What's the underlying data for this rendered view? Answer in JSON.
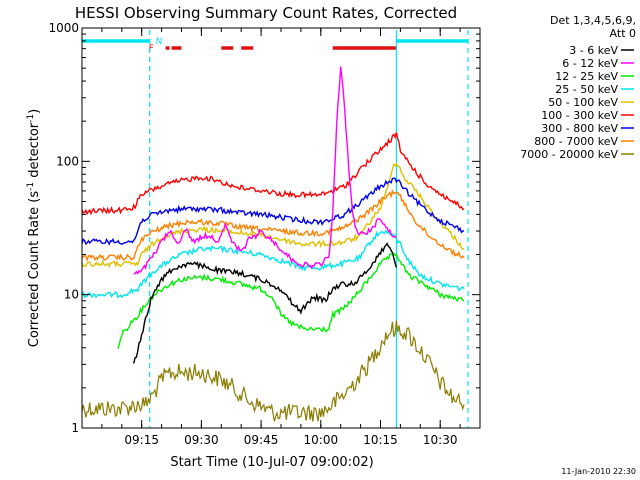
{
  "chart_data": {
    "type": "line",
    "title": "HESSI Observing Summary Count Rates, Corrected",
    "xlabel": "Start Time (10-Jul-07 09:00:02)",
    "ylabel_parts": [
      "Corrected Count Rate (s",
      "-1",
      " detector",
      "-1",
      ")"
    ],
    "y_scale": "log",
    "ylim": [
      1,
      1000
    ],
    "xlim": [
      "09:00",
      "10:40"
    ],
    "x_ticks": [
      "09:15",
      "09:30",
      "09:45",
      "10:00",
      "10:15",
      "10:30"
    ],
    "y_ticks": [
      "1",
      "10",
      "100",
      "1000"
    ],
    "grid": false,
    "legend_position": "outside-right",
    "legend_header": [
      "Det 1,3,4,5,6,9,",
      "Att 0"
    ],
    "footer_date": "11-Jan-2010 22:30",
    "flags": {
      "N": {
        "label": "N",
        "color": "#00e5ee",
        "segments": [
          [
            "09:00",
            "09:17"
          ],
          [
            "10:19",
            "10:37"
          ]
        ]
      },
      "F": {
        "label": "F",
        "color": "#e01010",
        "segments": [
          [
            "09:21",
            "09:22"
          ],
          [
            "09:22.5",
            "09:25"
          ],
          [
            "09:35",
            "09:38"
          ],
          [
            "09:40",
            "09:43"
          ],
          [
            "10:03",
            "10:19"
          ]
        ]
      }
    },
    "vlines": [
      "09:17",
      "10:19",
      "10:37"
    ],
    "series": [
      {
        "name": "3 - 6 keV",
        "color": "#000000",
        "points": [
          [
            "09:13",
            3
          ],
          [
            "09:14",
            3.8
          ],
          [
            "09:15",
            5
          ],
          [
            "09:16",
            6.5
          ],
          [
            "09:17",
            8.5
          ],
          [
            "09:18",
            10.5
          ],
          [
            "09:20",
            13
          ],
          [
            "09:22",
            15
          ],
          [
            "09:25",
            16.5
          ],
          [
            "09:27",
            17
          ],
          [
            "09:30",
            16.5
          ],
          [
            "09:35",
            15
          ],
          [
            "09:40",
            14.5
          ],
          [
            "09:45",
            13
          ],
          [
            "09:50",
            11
          ],
          [
            "09:53",
            8.5
          ],
          [
            "09:55",
            7.5
          ],
          [
            "09:57",
            9
          ],
          [
            "09:59",
            9.5
          ],
          [
            "10:01",
            9
          ],
          [
            "10:03",
            11
          ],
          [
            "10:05",
            12
          ],
          [
            "10:07",
            12
          ],
          [
            "10:09",
            12.5
          ],
          [
            "10:11",
            14.5
          ],
          [
            "10:13",
            17
          ],
          [
            "10:15",
            21
          ],
          [
            "10:17",
            24
          ],
          [
            "10:18",
            20
          ],
          [
            "10:19",
            16
          ]
        ]
      },
      {
        "name": "6 - 12 keV",
        "color": "#ff00ff",
        "points": [
          [
            "09:13",
            14
          ],
          [
            "09:15",
            15
          ],
          [
            "09:17",
            18
          ],
          [
            "09:19",
            22
          ],
          [
            "09:20",
            25
          ],
          [
            "09:22",
            30
          ],
          [
            "09:24",
            24
          ],
          [
            "09:26",
            31
          ],
          [
            "09:28",
            25
          ],
          [
            "09:30",
            27
          ],
          [
            "09:32",
            28
          ],
          [
            "09:34",
            25
          ],
          [
            "09:36",
            33
          ],
          [
            "09:38",
            24
          ],
          [
            "09:40",
            21
          ],
          [
            "09:42",
            26
          ],
          [
            "09:44",
            28
          ],
          [
            "09:45",
            30
          ],
          [
            "09:48",
            25
          ],
          [
            "09:50",
            22
          ],
          [
            "09:53",
            18
          ],
          [
            "09:55",
            17
          ],
          [
            "09:57",
            16.5
          ],
          [
            "10:00",
            17
          ],
          [
            "10:02",
            19
          ],
          [
            "10:03",
            40
          ],
          [
            "10:04",
            200
          ],
          [
            "10:05",
            500
          ],
          [
            "10:06",
            250
          ],
          [
            "10:07",
            90
          ],
          [
            "10:08",
            40
          ],
          [
            "10:09",
            30
          ],
          [
            "10:11",
            28
          ],
          [
            "10:13",
            32
          ],
          [
            "10:15",
            38
          ],
          [
            "10:17",
            30
          ],
          [
            "10:19",
            27
          ]
        ]
      },
      {
        "name": "12 - 25 keV",
        "color": "#00ee00",
        "points": [
          [
            "09:09",
            4
          ],
          [
            "09:10",
            5
          ],
          [
            "09:12",
            6
          ],
          [
            "09:14",
            7
          ],
          [
            "09:16",
            8.5
          ],
          [
            "09:18",
            10
          ],
          [
            "09:20",
            11
          ],
          [
            "09:22",
            12
          ],
          [
            "09:25",
            13
          ],
          [
            "09:30",
            13.5
          ],
          [
            "09:35",
            13
          ],
          [
            "09:40",
            12
          ],
          [
            "09:45",
            11
          ],
          [
            "09:48",
            9.5
          ],
          [
            "09:50",
            7
          ],
          [
            "09:53",
            6
          ],
          [
            "09:56",
            5.5
          ],
          [
            "10:00",
            5.5
          ],
          [
            "10:02",
            5.5
          ],
          [
            "10:03",
            7
          ],
          [
            "10:06",
            8
          ],
          [
            "10:09",
            10
          ],
          [
            "10:12",
            13
          ],
          [
            "10:15",
            17
          ],
          [
            "10:17",
            19
          ],
          [
            "10:19",
            20
          ],
          [
            "10:22",
            14
          ],
          [
            "10:26",
            12
          ],
          [
            "10:30",
            10
          ],
          [
            "10:33",
            9.5
          ],
          [
            "10:36",
            9
          ]
        ]
      },
      {
        "name": "25 - 50 keV",
        "color": "#00e5ee",
        "points": [
          [
            "09:00",
            10
          ],
          [
            "09:10",
            10
          ],
          [
            "09:14",
            11
          ],
          [
            "09:16",
            13
          ],
          [
            "09:18",
            15
          ],
          [
            "09:22",
            18
          ],
          [
            "09:25",
            20
          ],
          [
            "09:30",
            22
          ],
          [
            "09:35",
            22
          ],
          [
            "09:40",
            21
          ],
          [
            "09:45",
            20
          ],
          [
            "09:50",
            18
          ],
          [
            "09:55",
            16
          ],
          [
            "10:00",
            16
          ],
          [
            "10:05",
            17
          ],
          [
            "10:08",
            18
          ],
          [
            "10:10",
            19
          ],
          [
            "10:12",
            24
          ],
          [
            "10:14",
            28
          ],
          [
            "10:16",
            30
          ],
          [
            "10:18",
            28
          ],
          [
            "10:20",
            24
          ],
          [
            "10:22",
            18
          ],
          [
            "10:25",
            14
          ],
          [
            "10:30",
            12
          ],
          [
            "10:36",
            11
          ]
        ]
      },
      {
        "name": "50 - 100 keV",
        "color": "#e0c000",
        "points": [
          [
            "09:00",
            17
          ],
          [
            "09:14",
            17
          ],
          [
            "09:15",
            20
          ],
          [
            "09:17",
            23
          ],
          [
            "09:20",
            27
          ],
          [
            "09:25",
            30
          ],
          [
            "09:30",
            31
          ],
          [
            "09:35",
            30
          ],
          [
            "09:40",
            29
          ],
          [
            "09:45",
            28
          ],
          [
            "09:50",
            26
          ],
          [
            "09:55",
            24
          ],
          [
            "10:00",
            24
          ],
          [
            "10:05",
            24.5
          ],
          [
            "10:08",
            26
          ],
          [
            "10:10",
            28
          ],
          [
            "10:12",
            34
          ],
          [
            "10:15",
            45
          ],
          [
            "10:17",
            65
          ],
          [
            "10:18",
            90
          ],
          [
            "10:19",
            100
          ],
          [
            "10:21",
            75
          ],
          [
            "10:24",
            60
          ],
          [
            "10:27",
            45
          ],
          [
            "10:30",
            35
          ],
          [
            "10:33",
            28
          ],
          [
            "10:36",
            22
          ]
        ]
      },
      {
        "name": "100 - 300 keV",
        "color": "#ff0000",
        "points": [
          [
            "09:00",
            42
          ],
          [
            "09:10",
            43
          ],
          [
            "09:13",
            45
          ],
          [
            "09:15",
            56
          ],
          [
            "09:18",
            62
          ],
          [
            "09:22",
            68
          ],
          [
            "09:26",
            73
          ],
          [
            "09:30",
            76
          ],
          [
            "09:34",
            72
          ],
          [
            "09:38",
            65
          ],
          [
            "09:42",
            62
          ],
          [
            "09:46",
            60
          ],
          [
            "09:50",
            57
          ],
          [
            "09:55",
            56
          ],
          [
            "10:00",
            56
          ],
          [
            "10:03",
            60
          ],
          [
            "10:06",
            65
          ],
          [
            "10:08",
            75
          ],
          [
            "10:10",
            88
          ],
          [
            "10:12",
            100
          ],
          [
            "10:14",
            115
          ],
          [
            "10:16",
            130
          ],
          [
            "10:18",
            150
          ],
          [
            "10:19",
            160
          ],
          [
            "10:20",
            120
          ],
          [
            "10:23",
            90
          ],
          [
            "10:26",
            70
          ],
          [
            "10:30",
            57
          ],
          [
            "10:33",
            50
          ],
          [
            "10:36",
            44
          ]
        ]
      },
      {
        "name": "300 - 800 keV",
        "color": "#0000ee",
        "points": [
          [
            "09:00",
            25
          ],
          [
            "09:13",
            25
          ],
          [
            "09:15",
            36
          ],
          [
            "09:18",
            40
          ],
          [
            "09:22",
            43
          ],
          [
            "09:26",
            44
          ],
          [
            "09:30",
            44
          ],
          [
            "09:35",
            43
          ],
          [
            "09:40",
            41
          ],
          [
            "09:45",
            40
          ],
          [
            "09:50",
            38
          ],
          [
            "09:55",
            36
          ],
          [
            "10:00",
            35
          ],
          [
            "10:03",
            37
          ],
          [
            "10:06",
            40
          ],
          [
            "10:09",
            47
          ],
          [
            "10:12",
            55
          ],
          [
            "10:14",
            62
          ],
          [
            "10:16",
            68
          ],
          [
            "10:18",
            72
          ],
          [
            "10:19",
            73
          ],
          [
            "10:21",
            62
          ],
          [
            "10:24",
            50
          ],
          [
            "10:27",
            42
          ],
          [
            "10:30",
            36
          ],
          [
            "10:33",
            33
          ],
          [
            "10:36",
            30
          ]
        ]
      },
      {
        "name": "800 - 7000 keV",
        "color": "#ff8000",
        "points": [
          [
            "09:00",
            19
          ],
          [
            "09:13",
            19
          ],
          [
            "09:15",
            26
          ],
          [
            "09:18",
            30
          ],
          [
            "09:22",
            33
          ],
          [
            "09:26",
            35
          ],
          [
            "09:30",
            35
          ],
          [
            "09:35",
            34
          ],
          [
            "09:40",
            32
          ],
          [
            "09:45",
            31
          ],
          [
            "09:50",
            30
          ],
          [
            "09:55",
            29
          ],
          [
            "10:00",
            29
          ],
          [
            "10:03",
            30
          ],
          [
            "10:06",
            32
          ],
          [
            "10:09",
            36
          ],
          [
            "10:12",
            42
          ],
          [
            "10:15",
            50
          ],
          [
            "10:17",
            56
          ],
          [
            "10:19",
            60
          ],
          [
            "10:21",
            48
          ],
          [
            "10:24",
            35
          ],
          [
            "10:27",
            28
          ],
          [
            "10:30",
            24
          ],
          [
            "10:33",
            21
          ],
          [
            "10:36",
            19
          ]
        ]
      },
      {
        "name": "7000 - 20000 keV",
        "color": "#8b7d00",
        "points": [
          [
            "09:00",
            1.4
          ],
          [
            "09:10",
            1.4
          ],
          [
            "09:14",
            1.5
          ],
          [
            "09:16",
            1.5
          ],
          [
            "09:18",
            1.8
          ],
          [
            "09:20",
            2.3
          ],
          [
            "09:22",
            2.6
          ],
          [
            "09:25",
            2.6
          ],
          [
            "09:30",
            2.6
          ],
          [
            "09:35",
            2.3
          ],
          [
            "09:38",
            2.0
          ],
          [
            "09:42",
            1.6
          ],
          [
            "09:48",
            1.3
          ],
          [
            "09:55",
            1.3
          ],
          [
            "10:00",
            1.3
          ],
          [
            "10:03",
            1.5
          ],
          [
            "10:06",
            1.8
          ],
          [
            "10:09",
            2.3
          ],
          [
            "10:12",
            3
          ],
          [
            "10:14",
            3.8
          ],
          [
            "10:16",
            4.8
          ],
          [
            "10:18",
            5.5
          ],
          [
            "10:20",
            5.5
          ],
          [
            "10:22",
            5
          ],
          [
            "10:24",
            4.2
          ],
          [
            "10:26",
            3.5
          ],
          [
            "10:28",
            2.8
          ],
          [
            "10:30",
            2.2
          ],
          [
            "10:33",
            1.7
          ],
          [
            "10:36",
            1.5
          ]
        ]
      }
    ]
  }
}
